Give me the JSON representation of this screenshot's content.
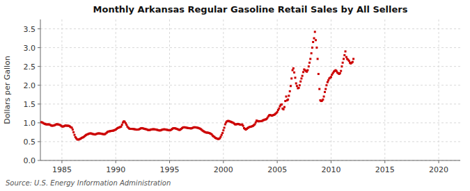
{
  "chart_data": {
    "type": "scatter",
    "title": "Monthly Arkansas Regular Gasoline Retail Sales by All Sellers",
    "y_label": "Dollars per Gallon",
    "annotation": "Source: U.S. Energy Information Administration",
    "color": "#CC0000",
    "marker": "square",
    "grid": true,
    "xlim": [
      1983,
      2022
    ],
    "ylim": [
      0.0,
      3.75
    ],
    "xticks": [
      1985,
      1990,
      1995,
      2000,
      2005,
      2010,
      2015,
      2020
    ],
    "yticks": [
      {
        "value": 0.0,
        "label": "0.0"
      },
      0.5,
      {
        "value": 1.0,
        "label": "1.0"
      },
      1.5,
      {
        "value": 2.0,
        "label": "2.0"
      },
      2.5,
      {
        "value": 3.0,
        "label": "3.0"
      },
      3.5
    ],
    "x": [
      1983.08,
      1983.17,
      1983.25,
      1983.33,
      1983.42,
      1983.5,
      1983.58,
      1983.67,
      1983.75,
      1983.83,
      1983.92,
      1984.0,
      1984.08,
      1984.17,
      1984.25,
      1984.33,
      1984.42,
      1984.5,
      1984.58,
      1984.67,
      1984.75,
      1984.83,
      1984.92,
      1985.0,
      1985.08,
      1985.17,
      1985.25,
      1985.33,
      1985.42,
      1985.5,
      1985.58,
      1985.67,
      1985.75,
      1985.83,
      1985.92,
      1986.0,
      1986.08,
      1986.17,
      1986.25,
      1986.33,
      1986.42,
      1986.5,
      1986.58,
      1986.67,
      1986.75,
      1986.83,
      1986.92,
      1987.0,
      1987.08,
      1987.17,
      1987.25,
      1987.33,
      1987.42,
      1987.5,
      1987.58,
      1987.67,
      1987.75,
      1987.83,
      1987.92,
      1988.0,
      1988.08,
      1988.17,
      1988.25,
      1988.33,
      1988.42,
      1988.5,
      1988.58,
      1988.67,
      1988.75,
      1988.83,
      1988.92,
      1989.0,
      1989.08,
      1989.17,
      1989.25,
      1989.33,
      1989.42,
      1989.5,
      1989.58,
      1989.67,
      1989.75,
      1989.83,
      1989.92,
      1990.0,
      1990.08,
      1990.17,
      1990.25,
      1990.33,
      1990.42,
      1990.5,
      1990.58,
      1990.67,
      1990.75,
      1990.83,
      1990.92,
      1991.0,
      1991.08,
      1991.17,
      1991.25,
      1991.33,
      1991.42,
      1991.5,
      1991.58,
      1991.67,
      1991.75,
      1991.83,
      1991.92,
      1992.0,
      1992.08,
      1992.17,
      1992.25,
      1992.33,
      1992.42,
      1992.5,
      1992.58,
      1992.67,
      1992.75,
      1992.83,
      1992.92,
      1993.0,
      1993.08,
      1993.17,
      1993.25,
      1993.33,
      1993.42,
      1993.5,
      1993.58,
      1993.67,
      1993.75,
      1993.83,
      1993.92,
      1994.0,
      1994.08,
      1994.17,
      1994.25,
      1994.33,
      1994.42,
      1994.5,
      1994.58,
      1994.67,
      1994.75,
      1994.83,
      1994.92,
      1995.0,
      1995.08,
      1995.17,
      1995.25,
      1995.33,
      1995.42,
      1995.5,
      1995.58,
      1995.67,
      1995.75,
      1995.83,
      1995.92,
      1996.0,
      1996.08,
      1996.17,
      1996.25,
      1996.33,
      1996.42,
      1996.5,
      1996.58,
      1996.67,
      1996.75,
      1996.83,
      1996.92,
      1997.0,
      1997.08,
      1997.17,
      1997.25,
      1997.33,
      1997.42,
      1997.5,
      1997.58,
      1997.67,
      1997.75,
      1997.83,
      1997.92,
      1998.0,
      1998.08,
      1998.17,
      1998.25,
      1998.33,
      1998.42,
      1998.5,
      1998.58,
      1998.67,
      1998.75,
      1998.83,
      1998.92,
      1999.0,
      1999.08,
      1999.17,
      1999.25,
      1999.33,
      1999.42,
      1999.5,
      1999.58,
      1999.67,
      1999.75,
      1999.83,
      1999.92,
      2000.0,
      2000.08,
      2000.17,
      2000.25,
      2000.33,
      2000.42,
      2000.5,
      2000.58,
      2000.67,
      2000.75,
      2000.83,
      2000.92,
      2001.0,
      2001.08,
      2001.17,
      2001.25,
      2001.33,
      2001.42,
      2001.5,
      2001.58,
      2001.67,
      2001.75,
      2001.83,
      2001.92,
      2002.0,
      2002.08,
      2002.17,
      2002.25,
      2002.33,
      2002.42,
      2002.5,
      2002.58,
      2002.67,
      2002.75,
      2002.83,
      2002.92,
      2003.0,
      2003.08,
      2003.17,
      2003.25,
      2003.33,
      2003.42,
      2003.5,
      2003.58,
      2003.67,
      2003.75,
      2003.83,
      2003.92,
      2004.0,
      2004.08,
      2004.17,
      2004.25,
      2004.33,
      2004.42,
      2004.5,
      2004.58,
      2004.67,
      2004.75,
      2004.83,
      2004.92,
      2005.0,
      2005.08,
      2005.17,
      2005.25,
      2005.33,
      2005.42,
      2005.5,
      2005.58,
      2005.67,
      2005.75,
      2005.83,
      2005.92,
      2006.0,
      2006.08,
      2006.17,
      2006.25,
      2006.33,
      2006.42,
      2006.5,
      2006.58,
      2006.67,
      2006.75,
      2006.83,
      2006.92,
      2007.0,
      2007.08,
      2007.17,
      2007.25,
      2007.33,
      2007.42,
      2007.5,
      2007.58,
      2007.67,
      2007.75,
      2007.83,
      2007.92,
      2008.0,
      2008.08,
      2008.17,
      2008.25,
      2008.33,
      2008.42,
      2008.5,
      2008.58,
      2008.67,
      2008.75,
      2008.83,
      2008.92,
      2009.0,
      2009.08,
      2009.17,
      2009.25,
      2009.33,
      2009.42,
      2009.5,
      2009.58,
      2009.67,
      2009.75,
      2009.83,
      2009.92,
      2010.0,
      2010.08,
      2010.17,
      2010.25,
      2010.33,
      2010.42,
      2010.5,
      2010.58,
      2010.67,
      2010.75,
      2010.83,
      2010.92,
      2011.0,
      2011.08,
      2011.17,
      2011.25,
      2011.33,
      2011.42,
      2011.5,
      2011.58,
      2011.67,
      2011.75,
      2011.83,
      2011.92,
      2012.0,
      2012.08
    ],
    "values": [
      1.019,
      1.01,
      0.998,
      0.981,
      0.972,
      0.962,
      0.958,
      0.958,
      0.96,
      0.957,
      0.944,
      0.93,
      0.923,
      0.926,
      0.93,
      0.938,
      0.952,
      0.964,
      0.96,
      0.958,
      0.951,
      0.942,
      0.924,
      0.906,
      0.9,
      0.908,
      0.918,
      0.93,
      0.925,
      0.922,
      0.924,
      0.917,
      0.901,
      0.884,
      0.87,
      0.82,
      0.75,
      0.68,
      0.62,
      0.59,
      0.56,
      0.555,
      0.558,
      0.57,
      0.58,
      0.6,
      0.61,
      0.618,
      0.64,
      0.66,
      0.678,
      0.69,
      0.7,
      0.71,
      0.718,
      0.72,
      0.715,
      0.705,
      0.7,
      0.695,
      0.69,
      0.7,
      0.71,
      0.718,
      0.72,
      0.718,
      0.715,
      0.71,
      0.705,
      0.7,
      0.695,
      0.7,
      0.72,
      0.74,
      0.76,
      0.77,
      0.775,
      0.78,
      0.785,
      0.79,
      0.79,
      0.8,
      0.81,
      0.82,
      0.84,
      0.86,
      0.87,
      0.88,
      0.89,
      0.9,
      0.95,
      1.01,
      1.04,
      1.03,
      0.99,
      0.95,
      0.9,
      0.87,
      0.85,
      0.84,
      0.84,
      0.84,
      0.838,
      0.835,
      0.83,
      0.825,
      0.82,
      0.82,
      0.822,
      0.828,
      0.84,
      0.855,
      0.86,
      0.855,
      0.848,
      0.84,
      0.835,
      0.83,
      0.82,
      0.81,
      0.808,
      0.81,
      0.82,
      0.825,
      0.828,
      0.83,
      0.828,
      0.825,
      0.82,
      0.815,
      0.808,
      0.8,
      0.798,
      0.8,
      0.81,
      0.82,
      0.825,
      0.828,
      0.825,
      0.82,
      0.815,
      0.81,
      0.805,
      0.8,
      0.805,
      0.82,
      0.84,
      0.855,
      0.858,
      0.855,
      0.848,
      0.84,
      0.83,
      0.82,
      0.81,
      0.82,
      0.84,
      0.86,
      0.878,
      0.882,
      0.88,
      0.875,
      0.87,
      0.865,
      0.86,
      0.858,
      0.855,
      0.852,
      0.858,
      0.87,
      0.88,
      0.882,
      0.88,
      0.875,
      0.87,
      0.865,
      0.855,
      0.845,
      0.83,
      0.81,
      0.79,
      0.775,
      0.76,
      0.75,
      0.74,
      0.74,
      0.738,
      0.73,
      0.72,
      0.71,
      0.69,
      0.66,
      0.64,
      0.625,
      0.6,
      0.59,
      0.58,
      0.57,
      0.575,
      0.59,
      0.63,
      0.68,
      0.73,
      0.8,
      0.87,
      0.96,
      1.01,
      1.04,
      1.05,
      1.048,
      1.04,
      1.03,
      1.02,
      1.01,
      1.0,
      0.98,
      0.96,
      0.958,
      0.965,
      0.97,
      0.968,
      0.958,
      0.95,
      0.95,
      0.958,
      0.92,
      0.86,
      0.84,
      0.82,
      0.84,
      0.86,
      0.875,
      0.89,
      0.895,
      0.9,
      0.91,
      0.92,
      0.94,
      0.96,
      1.01,
      1.06,
      1.05,
      1.04,
      1.045,
      1.042,
      1.045,
      1.05,
      1.065,
      1.075,
      1.085,
      1.09,
      1.1,
      1.13,
      1.17,
      1.2,
      1.21,
      1.2,
      1.19,
      1.2,
      1.21,
      1.22,
      1.24,
      1.26,
      1.29,
      1.34,
      1.38,
      1.44,
      1.48,
      1.49,
      1.38,
      1.36,
      1.42,
      1.58,
      1.7,
      1.6,
      1.62,
      1.72,
      1.84,
      1.98,
      2.18,
      2.4,
      2.45,
      2.34,
      2.2,
      2.05,
      1.98,
      1.92,
      1.93,
      2.0,
      2.1,
      2.18,
      2.25,
      2.35,
      2.42,
      2.4,
      2.38,
      2.36,
      2.4,
      2.5,
      2.6,
      2.7,
      2.85,
      3.0,
      3.15,
      3.25,
      3.42,
      3.2,
      3.0,
      2.7,
      2.3,
      1.9,
      1.6,
      1.58,
      1.59,
      1.62,
      1.7,
      1.82,
      1.9,
      2.0,
      2.08,
      2.13,
      2.18,
      2.2,
      2.22,
      2.28,
      2.32,
      2.36,
      2.38,
      2.4,
      2.38,
      2.34,
      2.32,
      2.3,
      2.32,
      2.38,
      2.5,
      2.6,
      2.7,
      2.8,
      2.9,
      2.75,
      2.7,
      2.68,
      2.65,
      2.6,
      2.58,
      2.6,
      2.62,
      2.7
    ]
  }
}
